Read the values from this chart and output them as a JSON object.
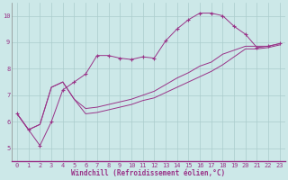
{
  "background_color": "#cce8e8",
  "grid_color": "#aacccc",
  "line_color": "#993388",
  "xlim": [
    -0.5,
    23.5
  ],
  "ylim": [
    4.5,
    10.5
  ],
  "yticks": [
    5,
    6,
    7,
    8,
    9,
    10
  ],
  "xticks": [
    0,
    1,
    2,
    3,
    4,
    5,
    6,
    7,
    8,
    9,
    10,
    11,
    12,
    13,
    14,
    15,
    16,
    17,
    18,
    19,
    20,
    21,
    22,
    23
  ],
  "xlabel": "Windchill (Refroidissement éolien,°C)",
  "series": [
    {
      "x": [
        0,
        1,
        2,
        3,
        4,
        5,
        6,
        7,
        8,
        9,
        10,
        11,
        12,
        13,
        14,
        15,
        16,
        17,
        18,
        19,
        20,
        21,
        22,
        23
      ],
      "y": [
        6.3,
        5.7,
        5.1,
        6.0,
        7.2,
        7.5,
        7.8,
        8.5,
        8.5,
        8.4,
        8.35,
        8.45,
        8.4,
        9.05,
        9.5,
        9.85,
        10.1,
        10.1,
        10.0,
        9.6,
        9.3,
        8.8,
        8.85,
        8.95
      ],
      "marker": "+"
    },
    {
      "x": [
        0,
        1,
        2,
        3,
        4,
        5,
        6,
        7,
        8,
        9,
        10,
        11,
        12,
        13,
        14,
        15,
        16,
        17,
        18,
        19,
        20,
        21,
        22,
        23
      ],
      "y": [
        6.3,
        5.7,
        5.9,
        7.3,
        7.5,
        6.85,
        6.5,
        6.55,
        6.65,
        6.75,
        6.85,
        7.0,
        7.15,
        7.4,
        7.65,
        7.85,
        8.1,
        8.25,
        8.55,
        8.7,
        8.85,
        8.85,
        8.85,
        8.95
      ],
      "marker": null
    },
    {
      "x": [
        0,
        1,
        2,
        3,
        4,
        5,
        6,
        7,
        8,
        9,
        10,
        11,
        12,
        13,
        14,
        15,
        16,
        17,
        18,
        19,
        20,
        21,
        22,
        23
      ],
      "y": [
        6.3,
        5.7,
        5.9,
        7.3,
        7.5,
        6.85,
        6.3,
        6.35,
        6.45,
        6.55,
        6.65,
        6.8,
        6.9,
        7.1,
        7.3,
        7.5,
        7.7,
        7.9,
        8.15,
        8.45,
        8.75,
        8.75,
        8.8,
        8.9
      ],
      "marker": null
    }
  ]
}
